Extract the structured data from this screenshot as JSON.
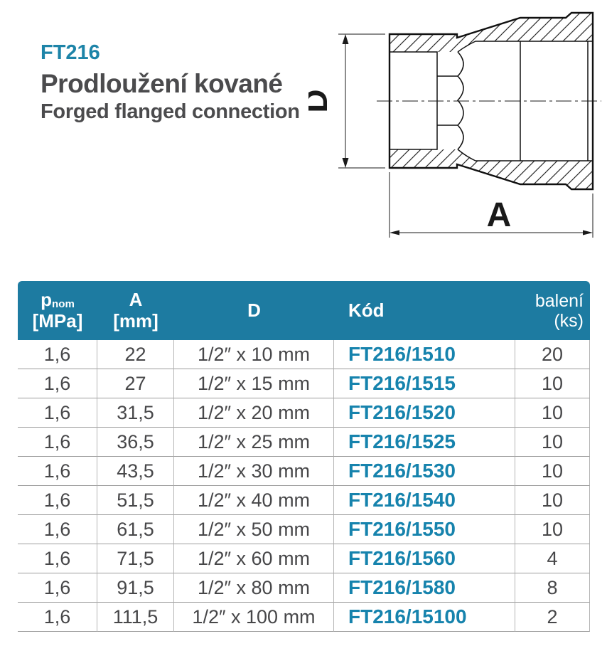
{
  "product": {
    "code": "FT216",
    "title_cs": "Prodloužení kované",
    "title_en": "Forged flanged connection"
  },
  "drawing": {
    "dim_vertical_label": "D",
    "dim_horizontal_label": "A"
  },
  "colors": {
    "accent_teal": "#1d84a8",
    "table_header_bg": "#1d7ba1",
    "code_text_teal": "#1683ad",
    "dark_text": "#4b4b4d"
  },
  "table": {
    "headers": {
      "p_main": "p",
      "p_sub": "nom",
      "p_unit": "[MPa]",
      "a_main": "A",
      "a_unit": "[mm]",
      "d": "D",
      "kod": "Kód",
      "baleni_line1": "balení",
      "baleni_line2": "(ks)"
    },
    "rows": [
      {
        "pnom": "1,6",
        "a": "22",
        "d": "1/2″ x 10 mm",
        "kod": "FT216/1510",
        "baleni": "20"
      },
      {
        "pnom": "1,6",
        "a": "27",
        "d": "1/2″ x 15 mm",
        "kod": "FT216/1515",
        "baleni": "10"
      },
      {
        "pnom": "1,6",
        "a": "31,5",
        "d": "1/2″ x 20 mm",
        "kod": "FT216/1520",
        "baleni": "10"
      },
      {
        "pnom": "1,6",
        "a": "36,5",
        "d": "1/2″ x 25 mm",
        "kod": "FT216/1525",
        "baleni": "10"
      },
      {
        "pnom": "1,6",
        "a": "43,5",
        "d": "1/2″ x 30 mm",
        "kod": "FT216/1530",
        "baleni": "10"
      },
      {
        "pnom": "1,6",
        "a": "51,5",
        "d": "1/2″ x 40 mm",
        "kod": "FT216/1540",
        "baleni": "10"
      },
      {
        "pnom": "1,6",
        "a": "61,5",
        "d": "1/2″ x 50 mm",
        "kod": "FT216/1550",
        "baleni": "10"
      },
      {
        "pnom": "1,6",
        "a": "71,5",
        "d": "1/2″ x 60 mm",
        "kod": "FT216/1560",
        "baleni": "4"
      },
      {
        "pnom": "1,6",
        "a": "91,5",
        "d": "1/2″ x 80 mm",
        "kod": "FT216/1580",
        "baleni": "8"
      },
      {
        "pnom": "1,6",
        "a": "111,5",
        "d": "1/2″ x 100 mm",
        "kod": "FT216/15100",
        "baleni": "2"
      }
    ]
  }
}
